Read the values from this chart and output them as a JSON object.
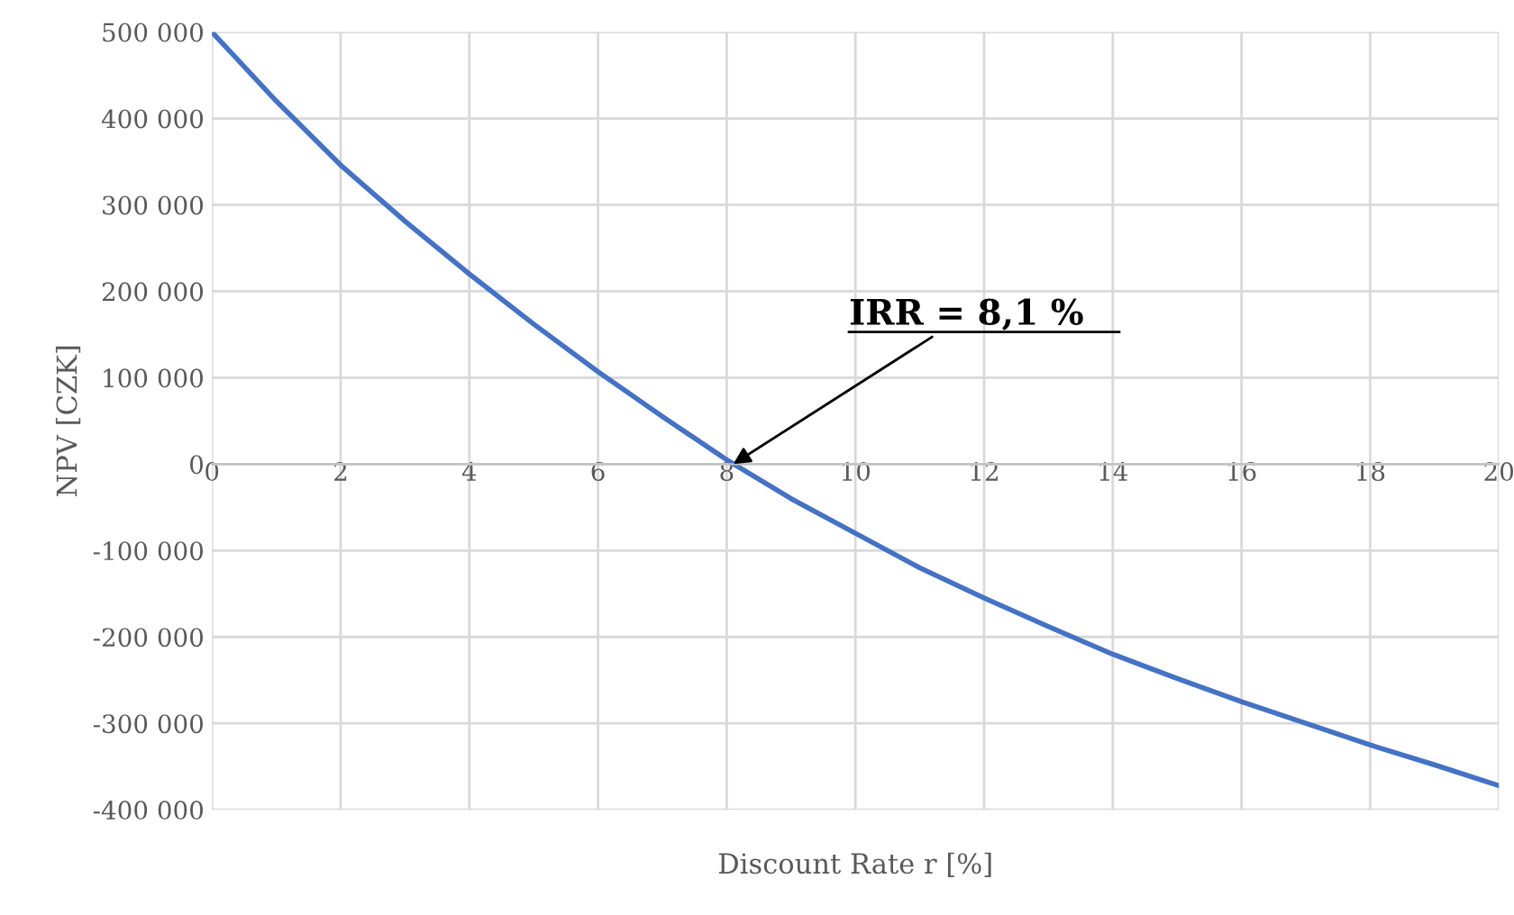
{
  "chart_data": {
    "type": "line",
    "xlabel": "Discount Rate r [%]",
    "ylabel": "NPV [CZK]",
    "x": [
      0,
      1,
      2,
      3,
      4,
      5,
      6,
      7,
      8,
      9,
      10,
      11,
      12,
      13,
      14,
      15,
      16,
      17,
      18,
      19,
      20
    ],
    "series": [
      {
        "color": "#4472c4",
        "values": [
          500000,
          420000,
          346000,
          281000,
          220000,
          162000,
          107000,
          55000,
          5000,
          -40000,
          -80000,
          -120000,
          -155000,
          -188000,
          -220000,
          -248000,
          -275000,
          -300000,
          -325000,
          -348000,
          -372000
        ]
      }
    ],
    "xlim": [
      0,
      20
    ],
    "ylim": [
      -400000,
      500000
    ],
    "xticks": [
      0,
      2,
      4,
      6,
      8,
      10,
      12,
      14,
      16,
      18,
      20
    ],
    "yticks": [
      {
        "value": -400000,
        "label": "-400 000"
      },
      {
        "value": -300000,
        "label": "-300 000"
      },
      {
        "value": -200000,
        "label": "-200 000"
      },
      {
        "value": -100000,
        "label": "-100 000"
      },
      {
        "value": 0,
        "label": "0"
      },
      {
        "value": 100000,
        "label": "100 000"
      },
      {
        "value": 200000,
        "label": "200 000"
      },
      {
        "value": 300000,
        "label": "300 000"
      },
      {
        "value": 400000,
        "label": "400 000"
      },
      {
        "value": 500000,
        "label": "500 000"
      }
    ],
    "annotations": [
      {
        "text": "IRR = 8,1 %",
        "x": 8.1,
        "y": 0
      }
    ],
    "grid": true,
    "legend": false,
    "marker": "none",
    "line_style": "solid"
  }
}
